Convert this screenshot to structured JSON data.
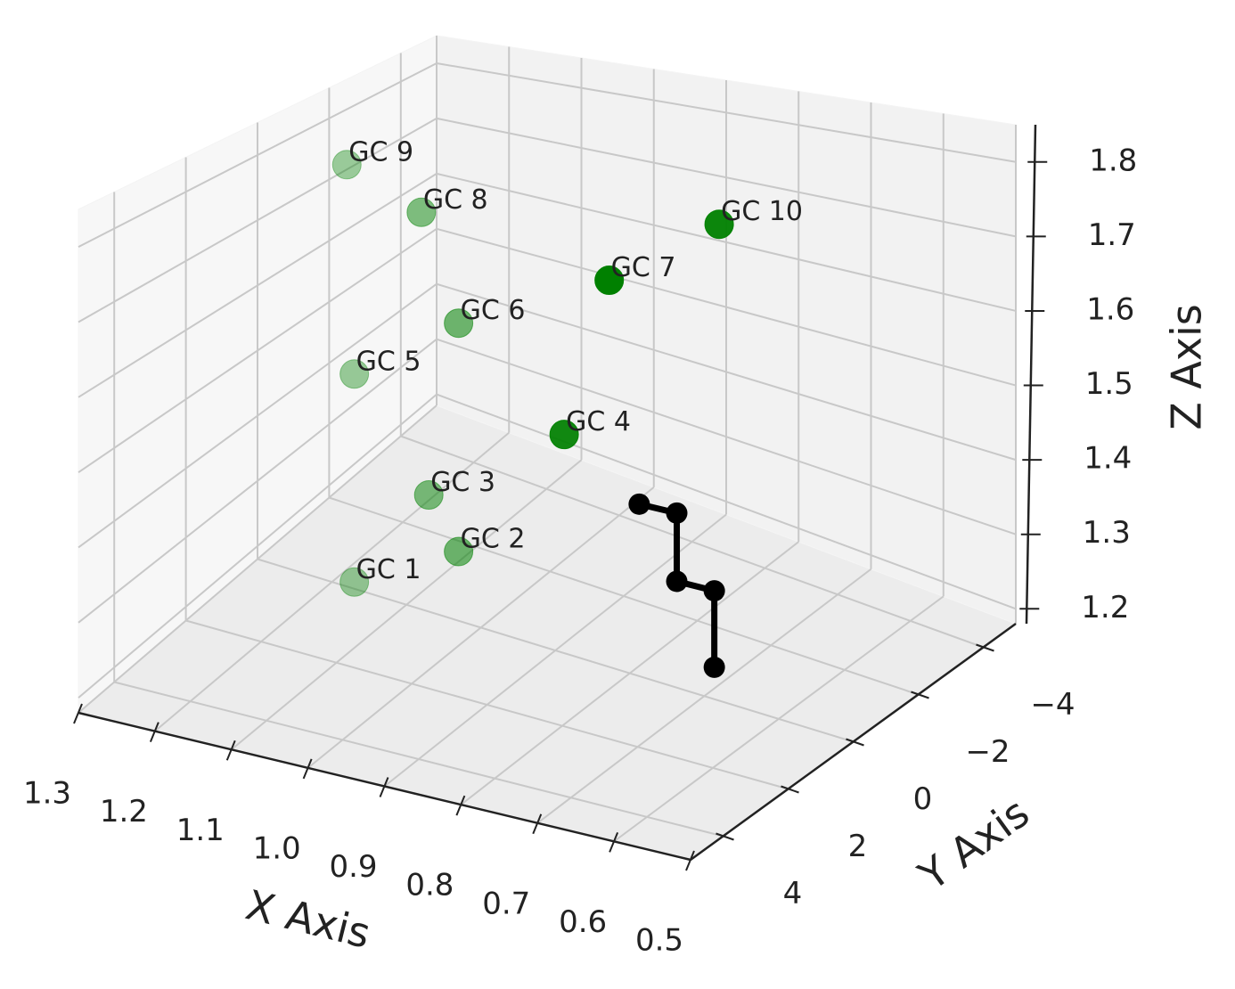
{
  "chart_data": {
    "type": "scatter3d",
    "xlabel": "X Axis",
    "ylabel": "Y Axis",
    "zlabel": "Z Axis",
    "xlim": [
      0.5,
      1.3
    ],
    "ylim": [
      -5,
      5
    ],
    "zlim": [
      1.18,
      1.85
    ],
    "xticks": [
      1.3,
      1.2,
      1.1,
      {
        "value": 1.0,
        "label": "1.0"
      },
      0.9,
      0.8,
      0.7,
      0.6,
      0.5
    ],
    "yticks": [
      {
        "value": -4,
        "label": "−4"
      },
      {
        "value": -2,
        "label": "−2"
      },
      0,
      2,
      4
    ],
    "zticks": [
      1.2,
      1.3,
      1.4,
      1.5,
      1.6,
      1.7,
      1.8
    ],
    "grid": true,
    "series": [
      {
        "type": "scatter",
        "color": "#008000",
        "depthshade": true,
        "labels": [
          "GC 1",
          "GC 2",
          "GC 3",
          "GC 4",
          "GC 5",
          "GC 6",
          "GC 7",
          "GC 8",
          "GC 9",
          "GC 10"
        ],
        "x": [
          1.17,
          1.03,
          1.07,
          0.82,
          1.17,
          1.03,
          0.76,
          1.08,
          1.18,
          0.68
        ],
        "y": [
          0,
          0,
          0,
          1.5,
          0,
          0,
          1.5,
          0,
          0,
          0
        ],
        "z": [
          1.19,
          1.28,
          1.35,
          1.55,
          1.5,
          1.61,
          1.77,
          1.76,
          1.81,
          1.82
        ]
      },
      {
        "type": "line",
        "color": "#000000",
        "x": [
          0.72,
          0.67,
          0.67,
          0.62,
          0.62
        ],
        "y": [
          1.5,
          1.5,
          1.5,
          1.5,
          1.5
        ],
        "z": [
          1.48,
          1.48,
          1.39,
          1.39,
          1.29
        ]
      }
    ]
  }
}
